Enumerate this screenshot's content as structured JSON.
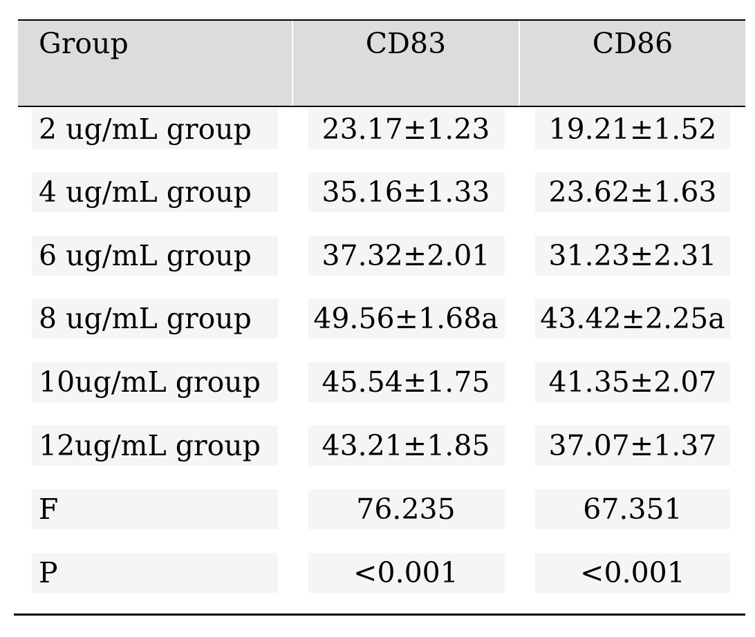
{
  "table": {
    "header": {
      "group": "Group",
      "col1": "CD83",
      "col2": "CD86"
    },
    "rows": [
      {
        "group": "2 ug/mL group",
        "cd83": "23.17±1.23",
        "cd86": "19.21±1.52"
      },
      {
        "group": "4 ug/mL group",
        "cd83": "35.16±1.33",
        "cd86": "23.62±1.63"
      },
      {
        "group": "6 ug/mL group",
        "cd83": "37.32±2.01",
        "cd86": "31.23±2.31"
      },
      {
        "group": "8 ug/mL group",
        "cd83": "49.56±1.68a",
        "cd86": "43.42±2.25a"
      },
      {
        "group": "10ug/mL group",
        "cd83": "45.54±1.75",
        "cd86": "41.35±2.07"
      },
      {
        "group": "12ug/mL group",
        "cd83": "43.21±1.85",
        "cd86": "37.07±1.37"
      },
      {
        "group": "F",
        "cd83": "76.235",
        "cd86": "67.351"
      },
      {
        "group": "P",
        "cd83": "<0.001",
        "cd86": "<0.001"
      }
    ]
  },
  "colors": {
    "header_bg": "#dcdcdc",
    "cell_bg": "#f5f5f5",
    "rule": "#000000"
  }
}
